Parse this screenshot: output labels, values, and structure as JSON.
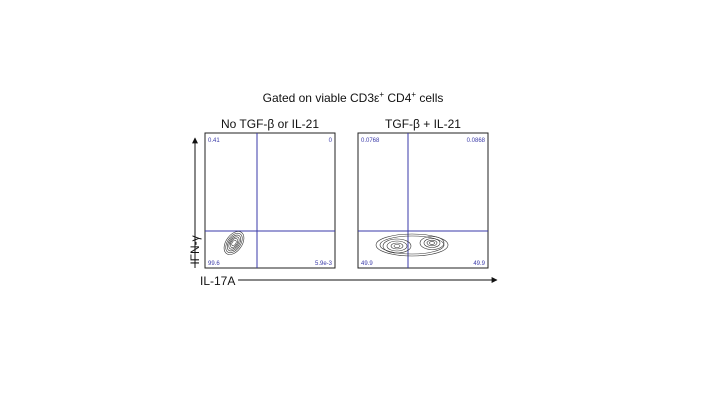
{
  "title": {
    "text": "Gated on viable CD3ε",
    "sup1": "+",
    "mid": " CD4",
    "sup2": "+",
    "end": " cells"
  },
  "y_axis_label": "IFN-γ",
  "x_axis_label": "IL-17A",
  "panels": [
    {
      "label": "No TGF-β or IL-21",
      "quadrants": {
        "upper_left": "0.41",
        "upper_right": "0",
        "lower_left": "99.6",
        "lower_right": "5.9e-3"
      }
    },
    {
      "label": "TGF-β + IL-21",
      "quadrants": {
        "upper_left": "0.0768",
        "upper_right": "0.0868",
        "lower_left": "49.9",
        "lower_right": "49.9"
      }
    }
  ]
}
